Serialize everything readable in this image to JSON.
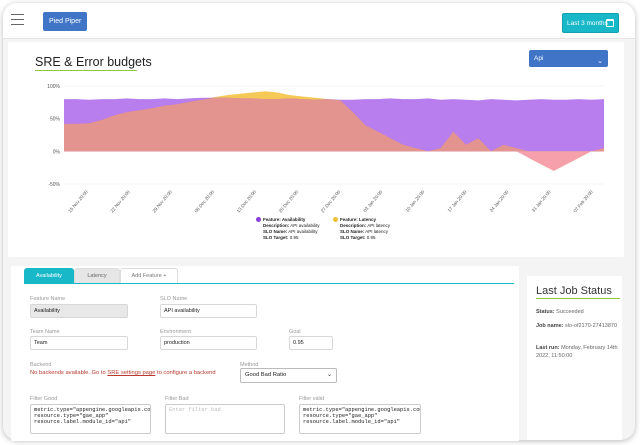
{
  "topbar": {
    "brand": "Pied Piper",
    "range_label": "Last 3 months"
  },
  "chart_card": {
    "title": "SRE & Error budgets",
    "select_value": "Api"
  },
  "chart_data": {
    "type": "area",
    "title": "SRE & Error budgets",
    "y_ticks": [
      "100%",
      "50%",
      "0%",
      "-50%"
    ],
    "ylim": [
      -50,
      100
    ],
    "x_ticks": [
      "15 Nov 20:00",
      "22 Nov 20:00",
      "29 Nov 20:00",
      "06 Dec 20:00",
      "13 Dec 20:00",
      "20 Dec 20:00",
      "27 Dec 20:00",
      "03 Jan 20:00",
      "10 Jan 20:00",
      "17 Jan 20:00",
      "24 Jan 20:00",
      "31 Jan 20:00",
      "07 Feb 20:00"
    ],
    "grid": true,
    "series": [
      {
        "name": "Feature: Availability",
        "color": "#8b3fd6",
        "y": [
          80,
          80,
          79,
          80,
          80,
          81,
          80,
          80,
          81,
          80,
          81,
          82,
          82,
          82,
          81,
          81,
          80,
          80,
          81,
          80,
          79,
          80,
          79,
          79,
          80,
          80,
          81,
          80,
          80,
          81,
          79,
          80,
          79,
          78,
          80,
          79,
          78,
          79,
          80,
          79,
          79,
          80,
          79,
          80
        ]
      },
      {
        "name": "Feature: Latency",
        "color": "#f2c037",
        "y": [
          42,
          42,
          43,
          48,
          55,
          60,
          63,
          66,
          70,
          72,
          76,
          79,
          83,
          86,
          88,
          90,
          92,
          90,
          86,
          84,
          82,
          80,
          78,
          60,
          40,
          30,
          20,
          10,
          5,
          0,
          5,
          30,
          10,
          20,
          0,
          10,
          5,
          -10,
          -20,
          -30,
          -20,
          -10,
          0,
          5
        ]
      }
    ],
    "legend": [
      {
        "title": "Feature: Availability",
        "description": "API availability",
        "slo_name": "API availability",
        "slo_target": "0.95",
        "color": "#8b3fd6"
      },
      {
        "title": "Feature: Latency",
        "description": "API latency",
        "slo_name": "API latency",
        "slo_target": "0.95",
        "color": "#f2c037"
      }
    ],
    "legend_text": {
      "desc": "Description:",
      "slo_name": "SLO Name:",
      "slo_target": "SLO Target:"
    }
  },
  "tabs": [
    "Availability",
    "Latency",
    "Add Feature +"
  ],
  "form": {
    "feature_name_label": "Feature Name",
    "feature_name_value": "Availability",
    "slo_name_label": "SLO Name",
    "slo_name_value": "API availability",
    "team_name_label": "Team Name",
    "team_name_value": "Team",
    "environment_label": "Environment",
    "environment_value": "production",
    "goal_label": "Goal",
    "goal_value": "0.95",
    "backend_label": "Backend",
    "backend_text_before": "No backends available. Go to ",
    "backend_link": "SRE settings page",
    "backend_text_after": " to configure a backend",
    "method_label": "Method",
    "method_value": "Good Bad Ratio",
    "filter_good_label": "Filter Good",
    "filter_good_value": "metric.type=\"appengine.googleapis.com/http/server/response_count\" resource.type=\"gae_app\" resource.label.module_id=\"api\"",
    "filter_bad_label": "Filter Bad",
    "filter_bad_placeholder": "Enter filter bad",
    "filter_valid_label": "Filter valid",
    "filter_valid_value": "metric.type=\"appengine.googleapis.com/http/server/response_count\" resource.type=\"gae_app\" resource.label.module_id=\"api\""
  },
  "job": {
    "title": "Last Job Status",
    "status_label": "Status:",
    "status_value": "Succeeded",
    "job_name_label": "Job name:",
    "job_name_value": "slo-of2170-27413870",
    "last_run_label": "Last run:",
    "last_run_value": "Monday, February 14th 2022, 11:50:00"
  }
}
